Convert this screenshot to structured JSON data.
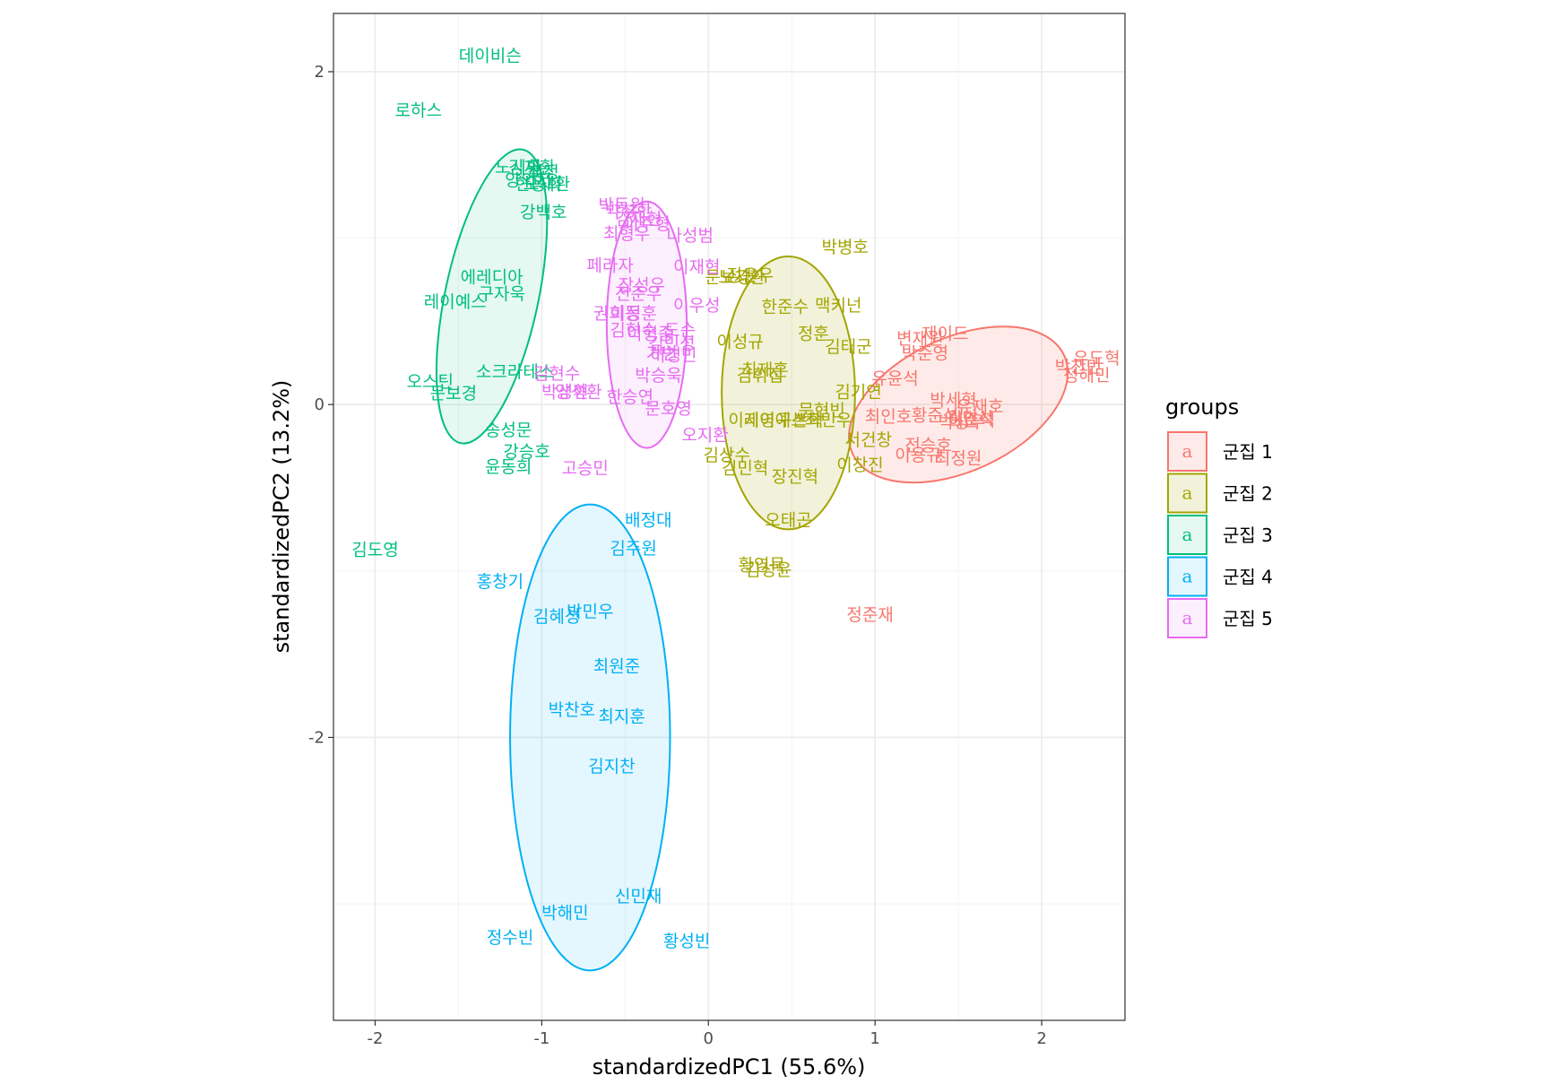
{
  "chart_data": {
    "type": "scatter",
    "xlabel": "standardizedPC1 (55.6%)",
    "ylabel": "standardizedPC2 (13.2%)",
    "xlim": [
      -2.25,
      2.5
    ],
    "ylim": [
      -3.7,
      2.35
    ],
    "x_ticks": [
      -2,
      -1,
      0,
      1,
      2
    ],
    "y_ticks": [
      -2,
      0,
      2
    ],
    "x_tick_labels": [
      "-2",
      "-1",
      "0",
      "1",
      "2"
    ],
    "y_tick_labels": [
      "-2",
      "0",
      "2"
    ],
    "grid": true,
    "legend": {
      "title": "groups",
      "placement": "right",
      "key_glyph": "a",
      "entries": [
        "군집 1",
        "군집 2",
        "군집 3",
        "군집 4",
        "군집 5"
      ]
    },
    "colors": [
      "#F8766D",
      "#A3A500",
      "#00BF7D",
      "#00B0F6",
      "#E76BF3"
    ],
    "ellipses": [
      {
        "group": 1,
        "cx": 1.5,
        "cy": 0.0,
        "rx": 0.7,
        "ry": 0.4,
        "angle": 25
      },
      {
        "group": 2,
        "cx": 0.48,
        "cy": 0.07,
        "rx": 0.4,
        "ry": 0.82,
        "angle": 0
      },
      {
        "group": 3,
        "cx": -1.3,
        "cy": 0.65,
        "rx": 0.9,
        "ry": 0.28,
        "angle": 78
      },
      {
        "group": 4,
        "cx": -0.71,
        "cy": -2.0,
        "rx": 0.48,
        "ry": 1.4,
        "angle": 0
      },
      {
        "group": 5,
        "cx": -0.37,
        "cy": 0.48,
        "rx": 0.24,
        "ry": 0.74,
        "angle": 0
      }
    ],
    "series": [
      {
        "group": 1,
        "points": [
          {
            "label": "우도혁",
            "x": 2.33,
            "y": 0.28
          },
          {
            "label": "박찬민",
            "x": 2.22,
            "y": 0.23
          },
          {
            "label": "정해민",
            "x": 2.27,
            "y": 0.18
          },
          {
            "label": "변재원",
            "x": 1.27,
            "y": 0.4
          },
          {
            "label": "제이드",
            "x": 1.42,
            "y": 0.43
          },
          {
            "label": "박준영",
            "x": 1.3,
            "y": 0.31
          },
          {
            "label": "유윤석",
            "x": 1.12,
            "y": 0.16
          },
          {
            "label": "박세혁",
            "x": 1.47,
            "y": 0.03
          },
          {
            "label": "유재호",
            "x": 1.63,
            "y": -0.01
          },
          {
            "label": "최인호",
            "x": 1.08,
            "y": -0.07
          },
          {
            "label": "황준석",
            "x": 1.36,
            "y": -0.06
          },
          {
            "label": "김민석",
            "x": 1.57,
            "y": -0.08
          },
          {
            "label": "이준석",
            "x": 1.58,
            "y": -0.09
          },
          {
            "label": "박상우",
            "x": 1.52,
            "y": -0.1
          },
          {
            "label": "전승호",
            "x": 1.32,
            "y": -0.24
          },
          {
            "label": "이용규",
            "x": 1.26,
            "y": -0.3
          },
          {
            "label": "최정원",
            "x": 1.5,
            "y": -0.32
          },
          {
            "label": "정준재",
            "x": 0.97,
            "y": -1.26
          }
        ]
      },
      {
        "group": 2,
        "points": [
          {
            "label": "박병호",
            "x": 0.82,
            "y": 0.95
          },
          {
            "label": "문보경",
            "x": 0.12,
            "y": 0.77
          },
          {
            "label": "노시환",
            "x": 0.2,
            "y": 0.77
          },
          {
            "label": "정은우",
            "x": 0.25,
            "y": 0.78
          },
          {
            "label": "한준수",
            "x": 0.46,
            "y": 0.59
          },
          {
            "label": "맥키넌",
            "x": 0.78,
            "y": 0.6
          },
          {
            "label": "정훈",
            "x": 0.63,
            "y": 0.43
          },
          {
            "label": "이성규",
            "x": 0.19,
            "y": 0.38
          },
          {
            "label": "김태군",
            "x": 0.84,
            "y": 0.35
          },
          {
            "label": "최재훈",
            "x": 0.34,
            "y": 0.21
          },
          {
            "label": "김휘집",
            "x": 0.31,
            "y": 0.18
          },
          {
            "label": "김기연",
            "x": 0.9,
            "y": 0.08
          },
          {
            "label": "문현빈",
            "x": 0.68,
            "y": -0.03
          },
          {
            "label": "이지영",
            "x": 0.26,
            "y": -0.09
          },
          {
            "label": "레이예스",
            "x": 0.4,
            "y": -0.09
          },
          {
            "label": "구본혁",
            "x": 0.55,
            "y": -0.09
          },
          {
            "label": "최민우",
            "x": 0.72,
            "y": -0.09
          },
          {
            "label": "서건창",
            "x": 0.96,
            "y": -0.21
          },
          {
            "label": "김상수",
            "x": 0.11,
            "y": -0.3
          },
          {
            "label": "이창진",
            "x": 0.91,
            "y": -0.36
          },
          {
            "label": "김민혁",
            "x": 0.22,
            "y": -0.38
          },
          {
            "label": "장진혁",
            "x": 0.52,
            "y": -0.43
          },
          {
            "label": "오태곤",
            "x": 0.48,
            "y": -0.69
          },
          {
            "label": "황영묵",
            "x": 0.32,
            "y": -0.96
          },
          {
            "label": "김성윤",
            "x": 0.36,
            "y": -0.99
          }
        ]
      },
      {
        "group": 3,
        "points": [
          {
            "label": "데이비슨",
            "x": -1.31,
            "y": 2.1
          },
          {
            "label": "로하스",
            "x": -1.74,
            "y": 1.77
          },
          {
            "label": "노시환",
            "x": -1.14,
            "y": 1.43
          },
          {
            "label": "김재환",
            "x": -1.06,
            "y": 1.43
          },
          {
            "label": "최정",
            "x": -0.99,
            "y": 1.4
          },
          {
            "label": "양의지",
            "x": -1.08,
            "y": 1.35
          },
          {
            "label": "한동희",
            "x": -1.02,
            "y": 1.33
          },
          {
            "label": "오재환",
            "x": -0.97,
            "y": 1.33
          },
          {
            "label": "강백호",
            "x": -0.99,
            "y": 1.16
          },
          {
            "label": "에레디아",
            "x": -1.3,
            "y": 0.77
          },
          {
            "label": "구자욱",
            "x": -1.24,
            "y": 0.67
          },
          {
            "label": "레이예스",
            "x": -1.52,
            "y": 0.62
          },
          {
            "label": "소크라테스",
            "x": -1.16,
            "y": 0.2
          },
          {
            "label": "오스틴",
            "x": -1.67,
            "y": 0.14
          },
          {
            "label": "문보경",
            "x": -1.53,
            "y": 0.07
          },
          {
            "label": "송성문",
            "x": -1.2,
            "y": -0.15
          },
          {
            "label": "강승호",
            "x": -1.09,
            "y": -0.28
          },
          {
            "label": "윤동희",
            "x": -1.2,
            "y": -0.37
          },
          {
            "label": "김도영",
            "x": -2.0,
            "y": -0.87
          }
        ]
      },
      {
        "group": 4,
        "points": [
          {
            "label": "배정대",
            "x": -0.36,
            "y": -0.69
          },
          {
            "label": "김주원",
            "x": -0.45,
            "y": -0.86
          },
          {
            "label": "홍창기",
            "x": -1.25,
            "y": -1.06
          },
          {
            "label": "김혜성",
            "x": -0.91,
            "y": -1.27
          },
          {
            "label": "박민우",
            "x": -0.71,
            "y": -1.24
          },
          {
            "label": "최원준",
            "x": -0.55,
            "y": -1.57
          },
          {
            "label": "박찬호",
            "x": -0.82,
            "y": -1.83
          },
          {
            "label": "최지훈",
            "x": -0.52,
            "y": -1.87
          },
          {
            "label": "김지찬",
            "x": -0.58,
            "y": -2.17
          },
          {
            "label": "신민재",
            "x": -0.42,
            "y": -2.95
          },
          {
            "label": "박해민",
            "x": -0.86,
            "y": -3.05
          },
          {
            "label": "정수빈",
            "x": -1.19,
            "y": -3.2
          },
          {
            "label": "황성빈",
            "x": -0.13,
            "y": -3.22
          }
        ]
      },
      {
        "group": 5,
        "points": [
          {
            "label": "박동원",
            "x": -0.52,
            "y": 1.2
          },
          {
            "label": "박성한",
            "x": -0.48,
            "y": 1.17
          },
          {
            "label": "김재현",
            "x": -0.42,
            "y": 1.12
          },
          {
            "label": "이주형",
            "x": -0.37,
            "y": 1.09
          },
          {
            "label": "최형우",
            "x": -0.49,
            "y": 1.03
          },
          {
            "label": "나성범",
            "x": -0.11,
            "y": 1.02
          },
          {
            "label": "페라자",
            "x": -0.59,
            "y": 0.84
          },
          {
            "label": "이재현",
            "x": -0.07,
            "y": 0.83
          },
          {
            "label": "장성우",
            "x": -0.4,
            "y": 0.72
          },
          {
            "label": "전준우",
            "x": -0.42,
            "y": 0.67
          },
          {
            "label": "이우성",
            "x": -0.07,
            "y": 0.6
          },
          {
            "label": "권희동",
            "x": -0.55,
            "y": 0.55
          },
          {
            "label": "이정훈",
            "x": -0.45,
            "y": 0.55
          },
          {
            "label": "김현수",
            "x": -0.45,
            "y": 0.45
          },
          {
            "label": "이형종",
            "x": -0.35,
            "y": 0.43
          },
          {
            "label": "도슨",
            "x": -0.17,
            "y": 0.45
          },
          {
            "label": "김민성",
            "x": -0.22,
            "y": 0.37
          },
          {
            "label": "가빈",
            "x": -0.28,
            "y": 0.31
          },
          {
            "label": "허경민",
            "x": -0.21,
            "y": 0.3
          },
          {
            "label": "박승욱",
            "x": -0.3,
            "y": 0.18
          },
          {
            "label": "김현수",
            "x": -0.91,
            "y": 0.19
          },
          {
            "label": "박성현",
            "x": -0.86,
            "y": 0.08
          },
          {
            "label": "양석환",
            "x": -0.78,
            "y": 0.08
          },
          {
            "label": "한승연",
            "x": -0.47,
            "y": 0.05
          },
          {
            "label": "문호영",
            "x": -0.24,
            "y": -0.02
          },
          {
            "label": "오지환",
            "x": -0.02,
            "y": -0.18
          },
          {
            "label": "고승민",
            "x": -0.74,
            "y": -0.38
          }
        ]
      }
    ]
  }
}
